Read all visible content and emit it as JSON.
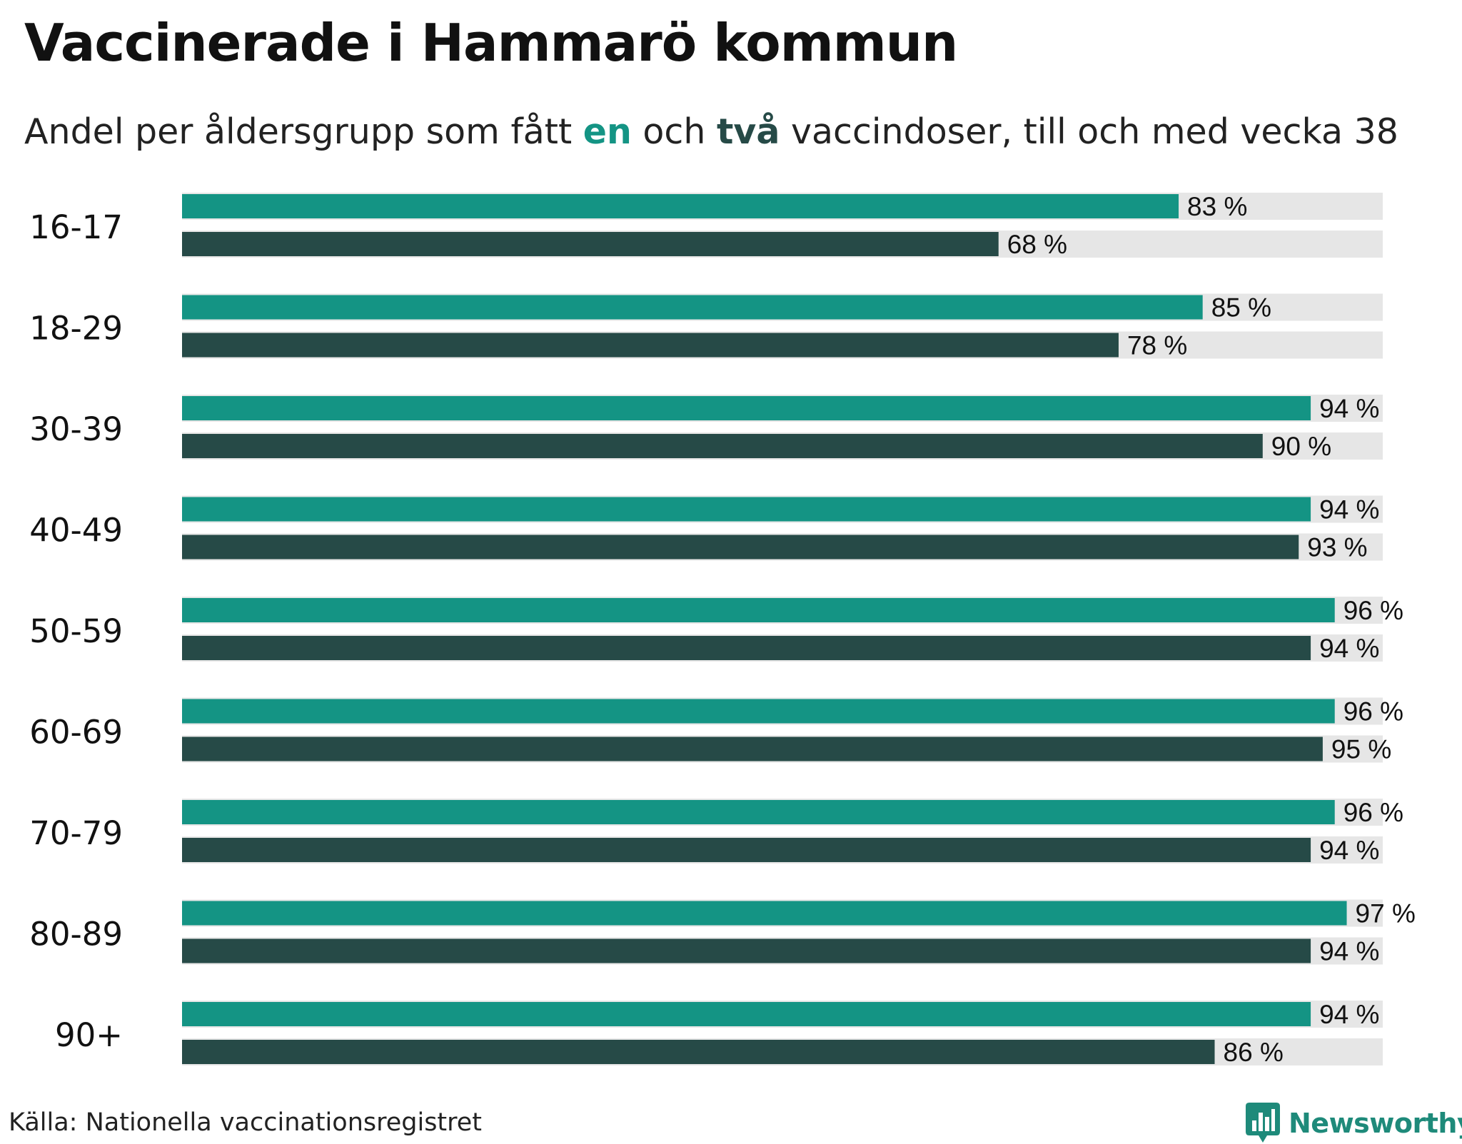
{
  "title": "Vaccinerade i Hammarö kommun",
  "subtitle": {
    "part1": "Andel per åldersgrupp som fått ",
    "highlight_one": "en",
    "part2": " och ",
    "highlight_two": "två",
    "part3": " vaccindoser, till och med vecka 38"
  },
  "colors": {
    "dose_one": "#149484",
    "dose_two": "#264a47",
    "track": "#e6e6e6",
    "logo": "#1e8a7a"
  },
  "chart_data": {
    "type": "bar",
    "orientation": "horizontal",
    "categories": [
      "16-17",
      "18-29",
      "30-39",
      "40-49",
      "50-59",
      "60-69",
      "70-79",
      "80-89",
      "90+"
    ],
    "series": [
      {
        "key": "en",
        "values": [
          83,
          85,
          94,
          94,
          96,
          96,
          96,
          97,
          94
        ]
      },
      {
        "key": "två",
        "values": [
          68,
          78,
          90,
          93,
          94,
          95,
          94,
          94,
          86
        ]
      }
    ],
    "value_labels": {
      "en": [
        "83 %",
        "85 %",
        "94 %",
        "94 %",
        "96 %",
        "96 %",
        "96 %",
        "97 %",
        "94 %"
      ],
      "två": [
        "68 %",
        "78 %",
        "90 %",
        "93 %",
        "94 %",
        "95 %",
        "94 %",
        "94 %",
        "86 %"
      ]
    },
    "xlim": [
      0,
      100
    ],
    "grid": false,
    "legend": "in-subtitle"
  },
  "source": "Källa: Nationella vaccinationsregistret",
  "logo": {
    "icon": "bar-chart-icon",
    "text": "Newsworthy"
  }
}
